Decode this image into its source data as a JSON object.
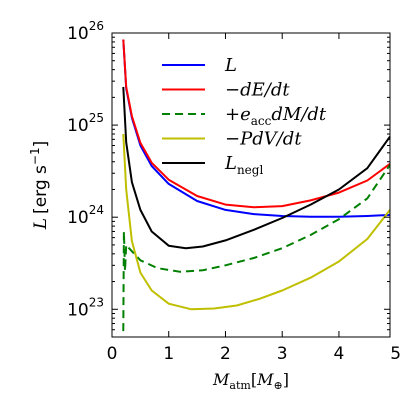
{
  "chart_data": {
    "type": "line",
    "title": "",
    "xlabel": {
      "main": "M",
      "sub": "atm",
      "unit_open": "[",
      "unit_main": "M",
      "unit_sub": "⊕",
      "unit_close": "]"
    },
    "ylabel": {
      "italic": "L",
      "units": "[erg s",
      "units_exp": "−1",
      "units_close": "]"
    },
    "xlim": [
      0,
      4.9
    ],
    "ylim": [
      5e+22,
      1e+26
    ],
    "yscale": "log",
    "grid": false,
    "legend_position": "upper-center",
    "x_ticks": [
      "0",
      "1",
      "2",
      "3",
      "4",
      "5"
    ],
    "y_ticks": [
      {
        "base": "10",
        "exp": "23"
      },
      {
        "base": "10",
        "exp": "24"
      },
      {
        "base": "10",
        "exp": "25"
      },
      {
        "base": "10",
        "exp": "26"
      }
    ],
    "series": [
      {
        "name": "L",
        "legend": {
          "pre": "",
          "main": "L",
          "sub": ""
        },
        "color": "#0000ff",
        "dash": "",
        "points": [
          [
            0.2,
            8.5e+25
          ],
          [
            0.25,
            2.5e+25
          ],
          [
            0.35,
            1.2e+25
          ],
          [
            0.5,
            6e+24
          ],
          [
            0.7,
            3.6e+24
          ],
          [
            1.0,
            2.3e+24
          ],
          [
            1.5,
            1.5e+24
          ],
          [
            2.0,
            1.2e+24
          ],
          [
            2.5,
            1.08e+24
          ],
          [
            3.0,
            1.03e+24
          ],
          [
            3.5,
            1.01e+24
          ],
          [
            4.0,
            1.01e+24
          ],
          [
            4.5,
            1.03e+24
          ],
          [
            4.9,
            1.06e+24
          ]
        ]
      },
      {
        "name": "-dE/dt",
        "legend": {
          "pre": "−",
          "main": "dE/dt",
          "sub": ""
        },
        "color": "#ff0000",
        "dash": "",
        "points": [
          [
            0.2,
            8.5e+25
          ],
          [
            0.25,
            2.6e+25
          ],
          [
            0.35,
            1.25e+25
          ],
          [
            0.5,
            6.4e+24
          ],
          [
            0.7,
            3.9e+24
          ],
          [
            1.0,
            2.55e+24
          ],
          [
            1.5,
            1.7e+24
          ],
          [
            2.0,
            1.37e+24
          ],
          [
            2.5,
            1.28e+24
          ],
          [
            3.0,
            1.32e+24
          ],
          [
            3.5,
            1.52e+24
          ],
          [
            4.0,
            1.85e+24
          ],
          [
            4.5,
            2.5e+24
          ],
          [
            4.9,
            3.8e+24
          ]
        ]
      },
      {
        "name": "+e_acc dM/dt",
        "legend": {
          "pre": "+",
          "main": "e",
          "sub": "acc",
          "post": "dM/dt"
        },
        "color": "#008000",
        "dash": "8,5",
        "points": [
          [
            0.2,
            5.8e+22
          ],
          [
            0.21,
            7e+23
          ],
          [
            0.23,
            2.6e+23
          ],
          [
            0.25,
            5e+23
          ],
          [
            0.3,
            4.6e+23
          ],
          [
            0.5,
            3.4e+23
          ],
          [
            0.8,
            2.8e+23
          ],
          [
            1.2,
            2.55e+23
          ],
          [
            1.6,
            2.65e+23
          ],
          [
            2.0,
            3e+23
          ],
          [
            2.5,
            3.6e+23
          ],
          [
            3.0,
            4.6e+23
          ],
          [
            3.5,
            6.4e+23
          ],
          [
            4.0,
            9.5e+23
          ],
          [
            4.5,
            1.6e+24
          ],
          [
            4.9,
            3.7e+24
          ]
        ]
      },
      {
        "name": "-PdV/dt",
        "legend": {
          "pre": "−",
          "main": "PdV/dt",
          "sub": ""
        },
        "color": "#bfbf00",
        "dash": "",
        "points": [
          [
            0.2,
            8e+24
          ],
          [
            0.25,
            2e+24
          ],
          [
            0.35,
            5.5e+23
          ],
          [
            0.5,
            2.5e+23
          ],
          [
            0.7,
            1.6e+23
          ],
          [
            1.0,
            1.15e+23
          ],
          [
            1.4,
            1e+23
          ],
          [
            1.8,
            1.02e+23
          ],
          [
            2.2,
            1.1e+23
          ],
          [
            2.6,
            1.3e+23
          ],
          [
            3.0,
            1.6e+23
          ],
          [
            3.5,
            2.2e+23
          ],
          [
            4.0,
            3.3e+23
          ],
          [
            4.5,
            5.8e+23
          ],
          [
            4.9,
            1.2e+24
          ]
        ]
      },
      {
        "name": "L_negl",
        "legend": {
          "pre": "",
          "main": "L",
          "sub": "negl"
        },
        "color": "#000000",
        "dash": "",
        "points": [
          [
            0.2,
            2.6e+25
          ],
          [
            0.25,
            6.5e+24
          ],
          [
            0.35,
            2.4e+24
          ],
          [
            0.5,
            1.2e+24
          ],
          [
            0.7,
            7e+23
          ],
          [
            1.0,
            4.9e+23
          ],
          [
            1.3,
            4.6e+23
          ],
          [
            1.6,
            4.8e+23
          ],
          [
            2.0,
            5.6e+23
          ],
          [
            2.5,
            7.3e+23
          ],
          [
            3.0,
            9.8e+23
          ],
          [
            3.5,
            1.37e+24
          ],
          [
            4.0,
            2e+24
          ],
          [
            4.5,
            3.4e+24
          ],
          [
            4.9,
            7.5e+24
          ]
        ]
      }
    ]
  }
}
